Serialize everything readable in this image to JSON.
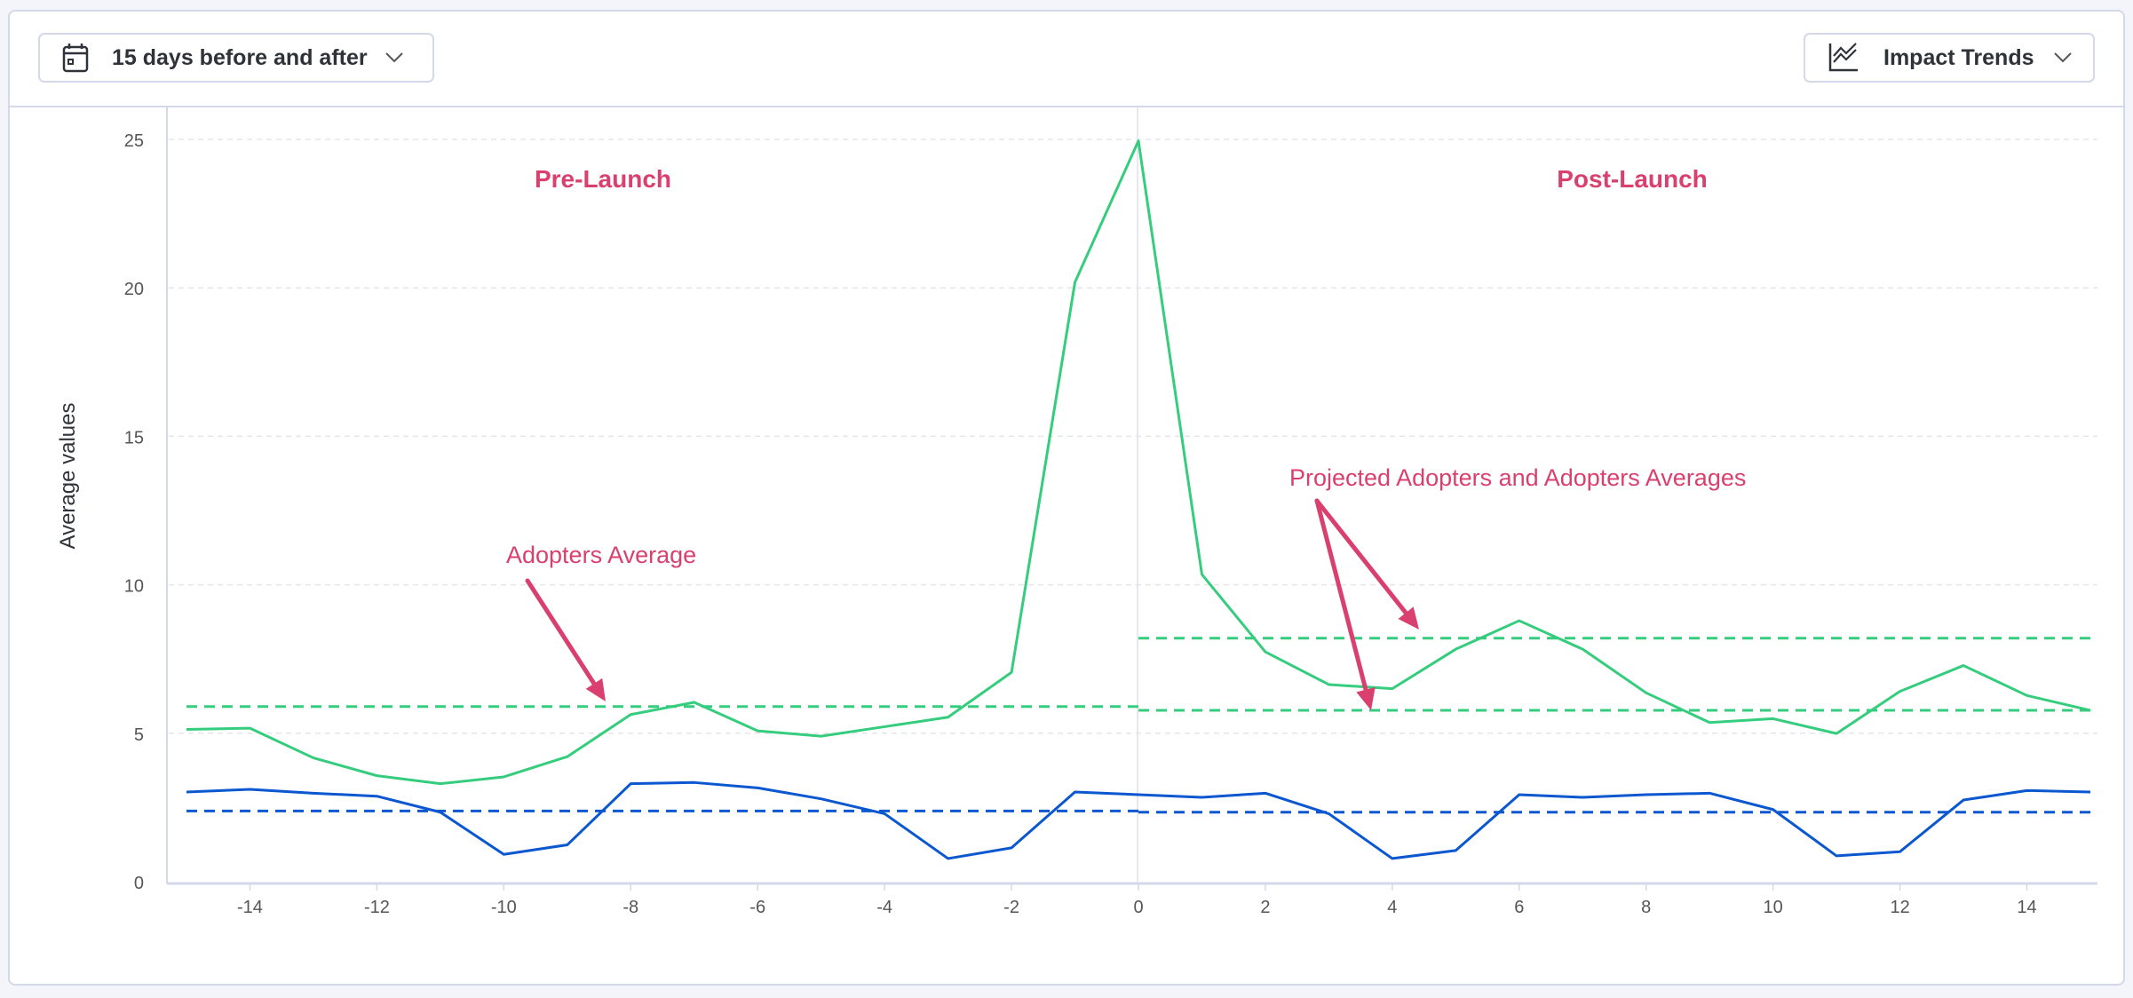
{
  "toolbar": {
    "range_label": "15 days before and after",
    "range_icon": "calendar-icon",
    "view_label": "Impact Trends",
    "view_icon": "line-chart-icon"
  },
  "chart_data": {
    "type": "line",
    "ylabel": "Average values",
    "xlabel": "",
    "xlim": [
      -15,
      15
    ],
    "ylim": [
      0,
      25
    ],
    "x_ticks": [
      "-14",
      "-12",
      "-10",
      "-8",
      "-6",
      "-4",
      "-2",
      "0",
      "2",
      "4",
      "6",
      "8",
      "10",
      "12",
      "14"
    ],
    "y_ticks": [
      "0",
      "5",
      "10",
      "15",
      "20",
      "25"
    ],
    "grid": "horizontal dashed",
    "x": [
      -15,
      -14,
      -13,
      -12,
      -11,
      -10,
      -9,
      -8,
      -7,
      -6,
      -5,
      -4,
      -3,
      -2,
      -1,
      0,
      1,
      2,
      3,
      4,
      5,
      6,
      7,
      8,
      9,
      10,
      11,
      12,
      13,
      14,
      15
    ],
    "series": [
      {
        "color": "#35cd7d",
        "values": [
          5.13,
          5.17,
          4.17,
          3.57,
          3.3,
          3.53,
          4.21,
          5.63,
          6.04,
          5.08,
          4.9,
          5.22,
          5.54,
          7.05,
          20.19,
          24.95,
          10.35,
          7.74,
          6.64,
          6.5,
          7.83,
          8.79,
          7.83,
          6.36,
          5.36,
          5.49,
          4.99,
          6.41,
          7.28,
          6.27,
          5.77
        ]
      },
      {
        "color": "#0b57d0",
        "values": [
          3.02,
          3.11,
          2.98,
          2.88,
          2.34,
          0.92,
          1.24,
          3.3,
          3.34,
          3.16,
          2.79,
          2.29,
          0.78,
          1.14,
          3.02,
          2.93,
          2.84,
          2.98,
          2.29,
          0.78,
          1.05,
          2.93,
          2.84,
          2.93,
          2.98,
          2.43,
          0.87,
          1.01,
          2.75,
          3.07,
          3.02
        ]
      }
    ],
    "reference_lines": [
      {
        "color": "#35cd7d",
        "from": -15,
        "to": 0,
        "value": 5.9
      },
      {
        "color": "#35cd7d",
        "from": 0,
        "to": 15,
        "value": 8.2
      },
      {
        "color": "#35cd7d",
        "from": 0,
        "to": 15,
        "value": 5.77
      },
      {
        "color": "#0b57d0",
        "from": -15,
        "to": 0,
        "value": 2.38
      },
      {
        "color": "#0b57d0",
        "from": 0,
        "to": 15,
        "value": 2.34
      }
    ],
    "annotations": {
      "color": "#d9406f",
      "pre_launch": "Pre-Launch",
      "post_launch": "Post-Launch",
      "adopters_average": "Adopters Average",
      "projected": "Projected Adopters and Adopters Averages"
    }
  }
}
